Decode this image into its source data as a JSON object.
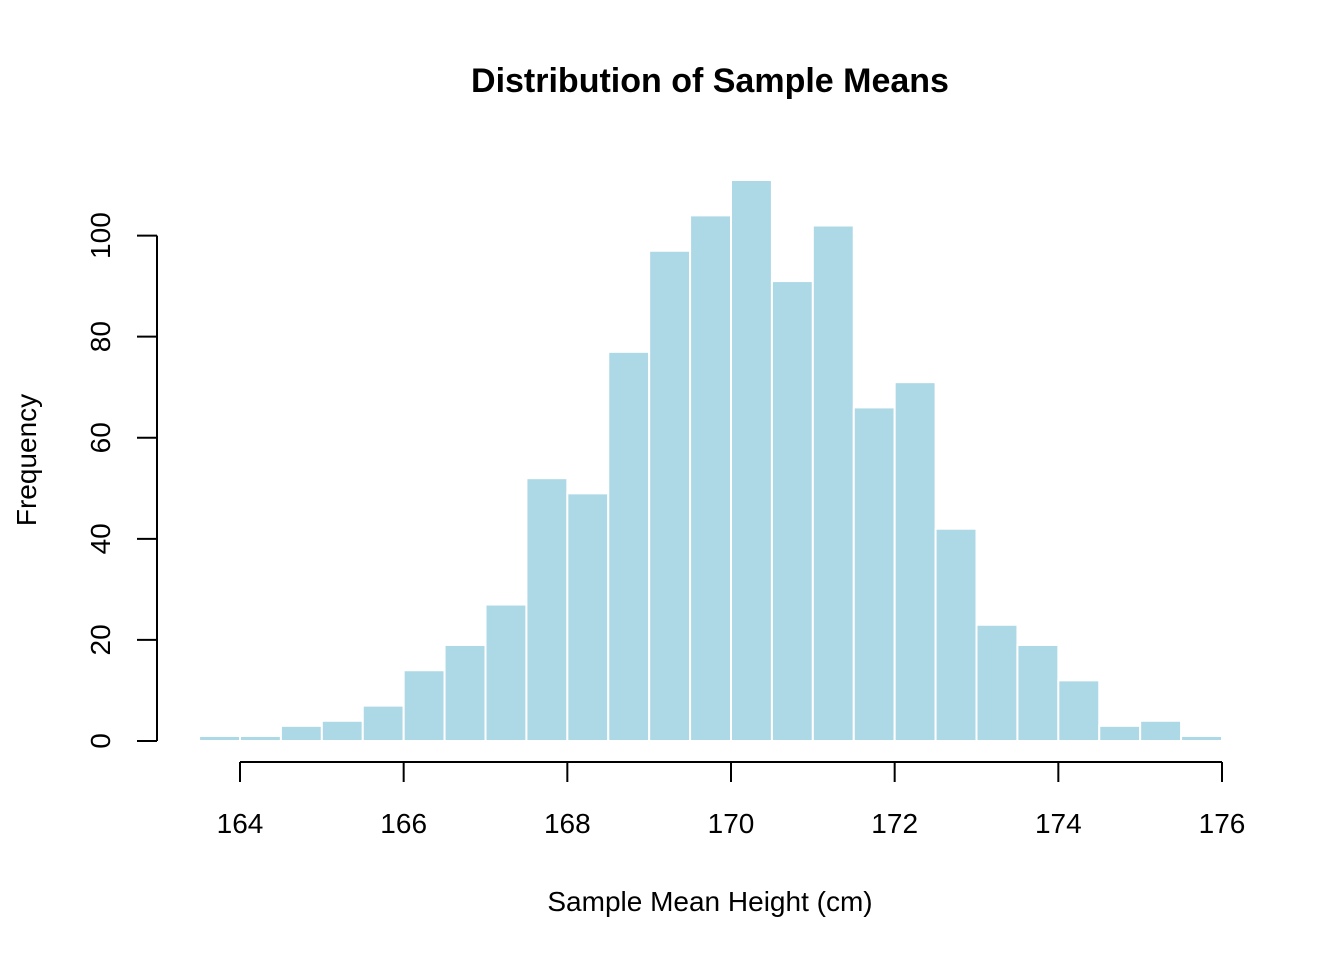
{
  "chart_data": {
    "type": "bar",
    "title": "Distribution of Sample Means",
    "xlabel": "Sample Mean Height (cm)",
    "ylabel": "Frequency",
    "bin_edges": [
      163.5,
      164,
      164.5,
      165,
      165.5,
      166,
      166.5,
      167,
      167.5,
      168,
      168.5,
      169,
      169.5,
      170,
      170.5,
      171,
      171.5,
      172,
      172.5,
      173,
      173.5,
      174,
      174.5,
      175,
      175.5,
      176
    ],
    "values": [
      1,
      1,
      3,
      4,
      7,
      14,
      19,
      27,
      52,
      49,
      77,
      97,
      104,
      111,
      91,
      102,
      66,
      71,
      42,
      23,
      19,
      12,
      3,
      4,
      1
    ],
    "xlim": [
      164,
      176
    ],
    "ylim": [
      0,
      111
    ],
    "x_ticks": [
      "164",
      "166",
      "168",
      "170",
      "172",
      "174",
      "176"
    ],
    "y_ticks": [
      "0",
      "20",
      "40",
      "60",
      "80",
      "100"
    ],
    "grid": false,
    "bar_color": "#add8e6",
    "bar_border_color": "#ffffff"
  }
}
